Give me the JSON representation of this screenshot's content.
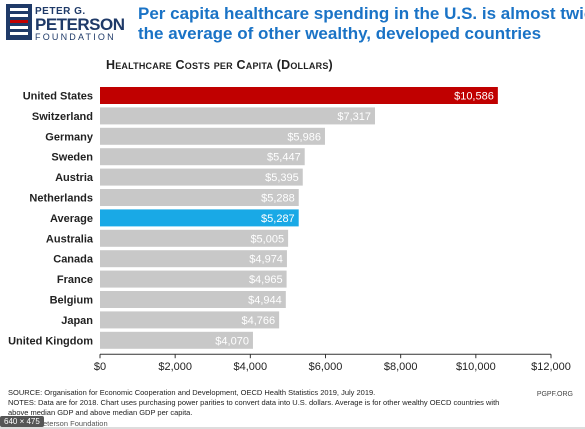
{
  "logo": {
    "line1": "PETER G.",
    "line2": "PETERSON",
    "line3": "FOUNDATION"
  },
  "headline": {
    "line1": "Per capita healthcare spending in the U.S. is almost twice",
    "line2": "the average of other wealthy, developed countries"
  },
  "chart_data": {
    "type": "bar",
    "orientation": "horizontal",
    "title": "Healthcare Costs per Capita (Dollars)",
    "categories": [
      "United States",
      "Switzerland",
      "Germany",
      "Sweden",
      "Austria",
      "Netherlands",
      "Average",
      "Australia",
      "Canada",
      "France",
      "Belgium",
      "Japan",
      "United Kingdom"
    ],
    "values": [
      10586,
      7317,
      5986,
      5447,
      5395,
      5288,
      5287,
      5005,
      4974,
      4965,
      4944,
      4766,
      4070
    ],
    "value_labels": [
      "$10,586",
      "$7,317",
      "$5,986",
      "$5,447",
      "$5,395",
      "$5,288",
      "$5,287",
      "$5,005",
      "$4,974",
      "$4,965",
      "$4,944",
      "$4,766",
      "$4,070"
    ],
    "xlim": [
      0,
      12000
    ],
    "xticks": [
      0,
      2000,
      4000,
      6000,
      8000,
      10000,
      12000
    ],
    "xtick_labels": [
      "$0",
      "$2,000",
      "$4,000",
      "$6,000",
      "$8,000",
      "$10,000",
      "$12,000"
    ],
    "grid": false,
    "colors": {
      "default": "#c8c8c8",
      "United States": "#c00000",
      "Average": "#19a9e6"
    }
  },
  "source": {
    "line1": "SOURCE: Organisation for Economic Cooperation and Development, OECD Health Statistics 2019, July 2019.",
    "line2": "NOTES: Data are for 2018. Chart uses purchasing power parities to convert data into U.S. dollars. Average is for other wealthy OECD countries with",
    "line3": "above median GDP and above median GDP per capita."
  },
  "footer": {
    "org": "Peter G. Peterson Foundation",
    "url": "PGPF.ORG"
  },
  "overlay": {
    "size_badge": "640 × 475"
  }
}
